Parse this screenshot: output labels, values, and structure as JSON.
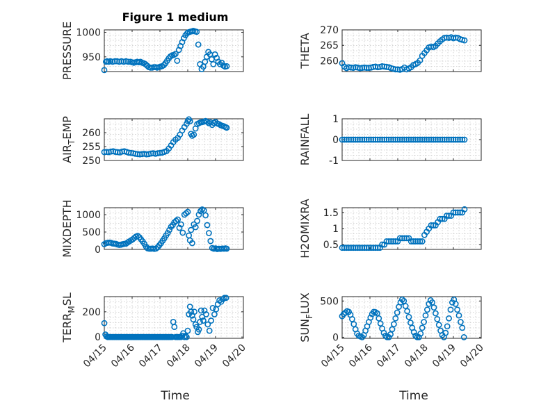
{
  "title": "Figure 1 medium",
  "xlabel": "Time",
  "x_tick_labels": [
    "04/15",
    "04/16",
    "04/17",
    "04/18",
    "04/19",
    "04/20"
  ],
  "marker_color": "#0072bd",
  "chart_data": [
    {
      "type": "scatter",
      "ylabel": "PRESSURE",
      "xlim": [
        "04/15",
        "04/20"
      ],
      "ylim": [
        920,
        1005
      ],
      "yticks": [
        950,
        1000
      ],
      "grid": true,
      "x": [
        0.0,
        0.06,
        0.1,
        0.16,
        0.22,
        0.3,
        0.38,
        0.46,
        0.54,
        0.62,
        0.7,
        0.78,
        0.86,
        0.94,
        1.0,
        1.06,
        1.12,
        1.18,
        1.24,
        1.3,
        1.36,
        1.42,
        1.48,
        1.54,
        1.6,
        1.66,
        1.72,
        1.78,
        1.84,
        1.9,
        1.96,
        2.02,
        2.08,
        2.14,
        2.2,
        2.26,
        2.32,
        2.38,
        2.44,
        2.5,
        2.56,
        2.62,
        2.68,
        2.74,
        2.8,
        2.86,
        2.92,
        2.98,
        3.02,
        3.08,
        3.14,
        3.2,
        3.26,
        3.32,
        3.38,
        3.44,
        3.5,
        3.56,
        3.62,
        3.68,
        3.74,
        3.8,
        3.86,
        3.92,
        3.98,
        4.04,
        4.1,
        4.16,
        4.22,
        4.28,
        4.34,
        4.4
      ],
      "y": [
        923,
        940,
        941,
        940,
        941,
        940,
        941,
        941,
        940,
        941,
        940,
        941,
        940,
        940,
        939,
        938,
        939,
        940,
        939,
        940,
        938,
        937,
        935,
        932,
        929,
        928,
        928,
        929,
        929,
        928,
        929,
        930,
        931,
        933,
        937,
        942,
        947,
        951,
        953,
        954,
        956,
        942,
        964,
        972,
        980,
        988,
        994,
        998,
        1000,
        1001,
        1002,
        1003,
        1002,
        1001,
        975,
        935,
        925,
        930,
        940,
        950,
        960,
        955,
        945,
        935,
        955,
        948,
        940,
        935,
        938,
        932,
        930,
        931
      ]
    },
    {
      "type": "scatter",
      "ylabel": "THETA",
      "xlim": [
        "04/15",
        "04/20"
      ],
      "ylim": [
        256.5,
        270
      ],
      "yticks": [
        260,
        265,
        270
      ],
      "grid": true,
      "x": [
        0.0,
        0.08,
        0.16,
        0.24,
        0.32,
        0.4,
        0.48,
        0.56,
        0.64,
        0.72,
        0.8,
        0.88,
        0.96,
        1.04,
        1.12,
        1.2,
        1.28,
        1.36,
        1.44,
        1.52,
        1.6,
        1.68,
        1.76,
        1.84,
        1.92,
        2.0,
        2.08,
        2.16,
        2.24,
        2.32,
        2.4,
        2.48,
        2.56,
        2.64,
        2.72,
        2.8,
        2.88,
        2.96,
        3.04,
        3.12,
        3.2,
        3.28,
        3.36,
        3.44,
        3.52,
        3.6,
        3.68,
        3.76,
        3.84,
        3.92,
        4.0,
        4.08,
        4.16,
        4.24,
        4.32,
        4.4
      ],
      "y": [
        259.2,
        258.1,
        257.6,
        257.9,
        257.8,
        257.7,
        257.9,
        257.8,
        257.6,
        257.7,
        257.8,
        257.7,
        257.7,
        257.8,
        258.0,
        258.1,
        257.9,
        258.0,
        258.2,
        258.1,
        258.0,
        257.9,
        257.6,
        257.4,
        257.2,
        257.2,
        257.1,
        257.3,
        257.8,
        257.2,
        257.5,
        257.9,
        258.6,
        258.9,
        259.3,
        260.1,
        261.6,
        262.5,
        263.4,
        264.3,
        264.6,
        264.4,
        264.8,
        265.6,
        266.3,
        266.9,
        267.4,
        267.5,
        267.4,
        267.6,
        267.3,
        267.5,
        267.4,
        267.0,
        266.8,
        266.6
      ]
    },
    {
      "type": "scatter",
      "ylabel": "AIR_TEMP",
      "xlim": [
        "04/15",
        "04/20"
      ],
      "ylim": [
        250,
        265
      ],
      "yticks": [
        250,
        255,
        260
      ],
      "grid": true,
      "x": [
        0.0,
        0.08,
        0.16,
        0.24,
        0.32,
        0.4,
        0.48,
        0.56,
        0.64,
        0.72,
        0.8,
        0.88,
        0.96,
        1.04,
        1.12,
        1.2,
        1.28,
        1.36,
        1.44,
        1.52,
        1.6,
        1.68,
        1.76,
        1.84,
        1.92,
        2.0,
        2.08,
        2.16,
        2.24,
        2.32,
        2.4,
        2.48,
        2.56,
        2.64,
        2.72,
        2.8,
        2.88,
        2.96,
        3.0,
        3.04,
        3.08,
        3.12,
        3.16,
        3.22,
        3.28,
        3.34,
        3.4,
        3.46,
        3.52,
        3.58,
        3.64,
        3.7,
        3.76,
        3.82,
        3.88,
        3.94,
        4.0,
        4.06,
        4.12,
        4.18,
        4.24,
        4.3,
        4.36,
        4.4
      ],
      "y": [
        253.0,
        253.1,
        253.0,
        253.2,
        253.3,
        253.1,
        253.0,
        252.9,
        253.2,
        253.3,
        253.1,
        252.8,
        252.7,
        252.6,
        252.4,
        252.3,
        252.2,
        252.3,
        252.4,
        252.2,
        252.3,
        252.5,
        252.6,
        252.4,
        252.6,
        252.7,
        252.8,
        253.1,
        253.4,
        254.3,
        255.4,
        256.6,
        257.5,
        258.1,
        259.3,
        260.8,
        262.0,
        263.2,
        264.2,
        264.8,
        264.1,
        259.6,
        258.9,
        259.3,
        261.5,
        263.1,
        263.4,
        263.7,
        263.8,
        264.0,
        264.2,
        263.9,
        263.4,
        263.7,
        262.8,
        263.5,
        263.9,
        263.3,
        263.1,
        262.7,
        262.5,
        262.3,
        262.0,
        261.8
      ]
    },
    {
      "type": "scatter",
      "ylabel": "RAINFALL",
      "xlim": [
        "04/15",
        "04/20"
      ],
      "ylim": [
        -1,
        1
      ],
      "yticks": [
        -1,
        0,
        1
      ],
      "grid": true,
      "x": [
        0.0,
        0.08,
        0.16,
        0.24,
        0.32,
        0.4,
        0.48,
        0.56,
        0.64,
        0.72,
        0.8,
        0.88,
        0.96,
        1.04,
        1.12,
        1.2,
        1.28,
        1.36,
        1.44,
        1.52,
        1.6,
        1.68,
        1.76,
        1.84,
        1.92,
        2.0,
        2.08,
        2.16,
        2.24,
        2.32,
        2.4,
        2.48,
        2.56,
        2.64,
        2.72,
        2.8,
        2.88,
        2.96,
        3.04,
        3.12,
        3.2,
        3.28,
        3.36,
        3.44,
        3.52,
        3.6,
        3.68,
        3.76,
        3.84,
        3.92,
        4.0,
        4.08,
        4.16,
        4.24,
        4.32,
        4.4
      ],
      "y": [
        0,
        0,
        0,
        0,
        0,
        0,
        0,
        0,
        0,
        0,
        0,
        0,
        0,
        0,
        0,
        0,
        0,
        0,
        0,
        0,
        0,
        0,
        0,
        0,
        0,
        0,
        0,
        0,
        0,
        0,
        0,
        0,
        0,
        0,
        0,
        0,
        0,
        0,
        0,
        0,
        0,
        0,
        0,
        0,
        0,
        0,
        0,
        0,
        0,
        0,
        0,
        0,
        0,
        0,
        0,
        0
      ]
    },
    {
      "type": "scatter",
      "ylabel": "MIXDEPTH",
      "xlim": [
        "04/15",
        "04/20"
      ],
      "ylim": [
        0,
        1200
      ],
      "yticks": [
        0,
        500,
        1000
      ],
      "grid": true,
      "x": [
        0.0,
        0.06,
        0.12,
        0.18,
        0.24,
        0.3,
        0.36,
        0.42,
        0.48,
        0.54,
        0.6,
        0.66,
        0.72,
        0.78,
        0.84,
        0.9,
        0.96,
        1.02,
        1.08,
        1.14,
        1.2,
        1.26,
        1.32,
        1.38,
        1.44,
        1.5,
        1.56,
        1.62,
        1.68,
        1.74,
        1.8,
        1.86,
        1.92,
        1.98,
        2.04,
        2.1,
        2.16,
        2.22,
        2.28,
        2.34,
        2.4,
        2.46,
        2.52,
        2.58,
        2.64,
        2.7,
        2.76,
        2.82,
        2.88,
        2.94,
        3.0,
        3.04,
        3.08,
        3.12,
        3.16,
        3.22,
        3.28,
        3.34,
        3.4,
        3.46,
        3.52,
        3.58,
        3.64,
        3.7,
        3.76,
        3.82,
        3.88,
        3.94,
        4.0,
        4.06,
        4.12,
        4.18,
        4.24,
        4.3,
        4.36,
        4.4
      ],
      "y": [
        150,
        180,
        190,
        195,
        190,
        170,
        165,
        160,
        140,
        130,
        135,
        150,
        160,
        165,
        200,
        230,
        260,
        290,
        330,
        370,
        390,
        350,
        290,
        230,
        160,
        80,
        30,
        20,
        20,
        25,
        15,
        25,
        60,
        120,
        180,
        250,
        320,
        400,
        470,
        560,
        650,
        700,
        780,
        820,
        860,
        620,
        720,
        480,
        1000,
        1040,
        1080,
        400,
        260,
        560,
        180,
        720,
        640,
        820,
        1000,
        1100,
        1150,
        1120,
        980,
        700,
        470,
        240,
        40,
        20,
        30,
        10,
        20,
        15,
        25,
        20,
        30,
        20
      ]
    },
    {
      "type": "scatter",
      "ylabel": "H2OMIXRA",
      "xlim": [
        "04/15",
        "04/20"
      ],
      "ylim": [
        0.35,
        1.65
      ],
      "yticks": [
        0.5,
        1,
        1.5
      ],
      "grid": true,
      "x": [
        0.0,
        0.08,
        0.16,
        0.24,
        0.32,
        0.4,
        0.48,
        0.56,
        0.64,
        0.72,
        0.8,
        0.88,
        0.96,
        1.04,
        1.12,
        1.2,
        1.28,
        1.36,
        1.44,
        1.52,
        1.6,
        1.68,
        1.76,
        1.84,
        1.92,
        2.0,
        2.08,
        2.16,
        2.24,
        2.32,
        2.4,
        2.48,
        2.56,
        2.64,
        2.72,
        2.8,
        2.88,
        2.96,
        3.04,
        3.12,
        3.2,
        3.28,
        3.36,
        3.44,
        3.52,
        3.6,
        3.68,
        3.76,
        3.84,
        3.92,
        4.0,
        4.08,
        4.16,
        4.24,
        4.32,
        4.4
      ],
      "y": [
        0.4,
        0.4,
        0.4,
        0.4,
        0.4,
        0.4,
        0.4,
        0.4,
        0.4,
        0.4,
        0.4,
        0.4,
        0.4,
        0.4,
        0.4,
        0.4,
        0.4,
        0.4,
        0.5,
        0.5,
        0.6,
        0.6,
        0.6,
        0.6,
        0.6,
        0.6,
        0.7,
        0.7,
        0.7,
        0.7,
        0.7,
        0.6,
        0.6,
        0.6,
        0.6,
        0.6,
        0.6,
        0.8,
        0.9,
        1.0,
        1.1,
        1.1,
        1.1,
        1.2,
        1.3,
        1.3,
        1.3,
        1.4,
        1.4,
        1.4,
        1.5,
        1.5,
        1.5,
        1.5,
        1.5,
        1.6
      ]
    },
    {
      "type": "scatter",
      "ylabel": "TERR_MSL",
      "xlim": [
        "04/15",
        "04/20"
      ],
      "ylim": [
        -10,
        320
      ],
      "yticks": [
        0,
        200
      ],
      "grid": true,
      "x": [
        0.0,
        0.04,
        0.08,
        0.12,
        0.16,
        0.2,
        0.24,
        0.28,
        0.32,
        0.36,
        0.4,
        0.44,
        0.48,
        0.52,
        0.56,
        0.6,
        0.64,
        0.68,
        0.72,
        0.76,
        0.8,
        0.84,
        0.88,
        0.92,
        0.96,
        1.0,
        1.04,
        1.08,
        1.12,
        1.16,
        1.2,
        1.24,
        1.28,
        1.32,
        1.36,
        1.4,
        1.44,
        1.48,
        1.52,
        1.56,
        1.6,
        1.64,
        1.68,
        1.72,
        1.76,
        1.8,
        1.84,
        1.88,
        1.92,
        1.96,
        2.0,
        2.04,
        2.08,
        2.12,
        2.16,
        2.2,
        2.24,
        2.28,
        2.32,
        2.36,
        2.4,
        2.44,
        2.48,
        2.52,
        2.56,
        2.6,
        2.64,
        2.68,
        2.72,
        2.76,
        2.8,
        2.84,
        2.88,
        2.92,
        2.96,
        3.0,
        3.04,
        3.08,
        3.12,
        3.16,
        3.2,
        3.24,
        3.28,
        3.32,
        3.36,
        3.4,
        3.44,
        3.48,
        3.52,
        3.56,
        3.6,
        3.66,
        3.72,
        3.78,
        3.84,
        3.9,
        3.96,
        4.02,
        4.08,
        4.14,
        4.2,
        4.26,
        4.32,
        4.38
      ],
      "y": [
        110,
        20,
        5,
        0,
        0,
        0,
        0,
        0,
        0,
        0,
        0,
        0,
        0,
        0,
        0,
        0,
        0,
        0,
        0,
        0,
        0,
        0,
        0,
        0,
        0,
        0,
        0,
        0,
        0,
        0,
        0,
        0,
        0,
        0,
        0,
        0,
        0,
        0,
        0,
        0,
        0,
        0,
        0,
        0,
        0,
        0,
        0,
        0,
        0,
        0,
        0,
        0,
        0,
        0,
        0,
        0,
        0,
        0,
        0,
        0,
        0,
        0,
        120,
        80,
        0,
        0,
        0,
        0,
        0,
        0,
        10,
        30,
        0,
        10,
        0,
        50,
        180,
        240,
        200,
        170,
        140,
        200,
        100,
        80,
        40,
        60,
        120,
        210,
        160,
        130,
        210,
        180,
        100,
        50,
        130,
        230,
        180,
        220,
        260,
        290,
        280,
        300,
        310,
        310
      ]
    },
    {
      "type": "scatter",
      "ylabel": "SUN_FLUX",
      "xlim": [
        "04/15",
        "04/20"
      ],
      "ylim": [
        -15,
        560
      ],
      "yticks": [
        0,
        500
      ],
      "grid": true,
      "x": [
        0.0,
        0.06,
        0.12,
        0.18,
        0.24,
        0.3,
        0.36,
        0.42,
        0.48,
        0.54,
        0.6,
        0.66,
        0.72,
        0.78,
        0.84,
        0.9,
        0.96,
        1.02,
        1.08,
        1.14,
        1.2,
        1.26,
        1.32,
        1.38,
        1.44,
        1.5,
        1.56,
        1.62,
        1.68,
        1.74,
        1.8,
        1.86,
        1.92,
        1.98,
        2.04,
        2.1,
        2.16,
        2.22,
        2.28,
        2.34,
        2.4,
        2.46,
        2.52,
        2.58,
        2.64,
        2.7,
        2.76,
        2.82,
        2.88,
        2.94,
        3.0,
        3.06,
        3.12,
        3.18,
        3.24,
        3.3,
        3.36,
        3.42,
        3.48,
        3.54,
        3.6,
        3.66,
        3.72,
        3.78,
        3.84,
        3.9,
        3.96,
        4.02,
        4.08,
        4.14,
        4.2,
        4.26,
        4.32,
        4.38
      ],
      "y": [
        290,
        320,
        340,
        360,
        350,
        310,
        250,
        180,
        110,
        50,
        20,
        10,
        0,
        30,
        90,
        150,
        210,
        270,
        320,
        350,
        345,
        330,
        260,
        190,
        120,
        60,
        20,
        0,
        0,
        40,
        110,
        180,
        260,
        340,
        420,
        480,
        520,
        500,
        430,
        360,
        280,
        200,
        130,
        70,
        20,
        0,
        0,
        50,
        130,
        210,
        300,
        380,
        460,
        510,
        480,
        410,
        330,
        250,
        170,
        90,
        30,
        0,
        60,
        150,
        260,
        380,
        480,
        520,
        460,
        380,
        300,
        210,
        130,
        0
      ]
    }
  ]
}
